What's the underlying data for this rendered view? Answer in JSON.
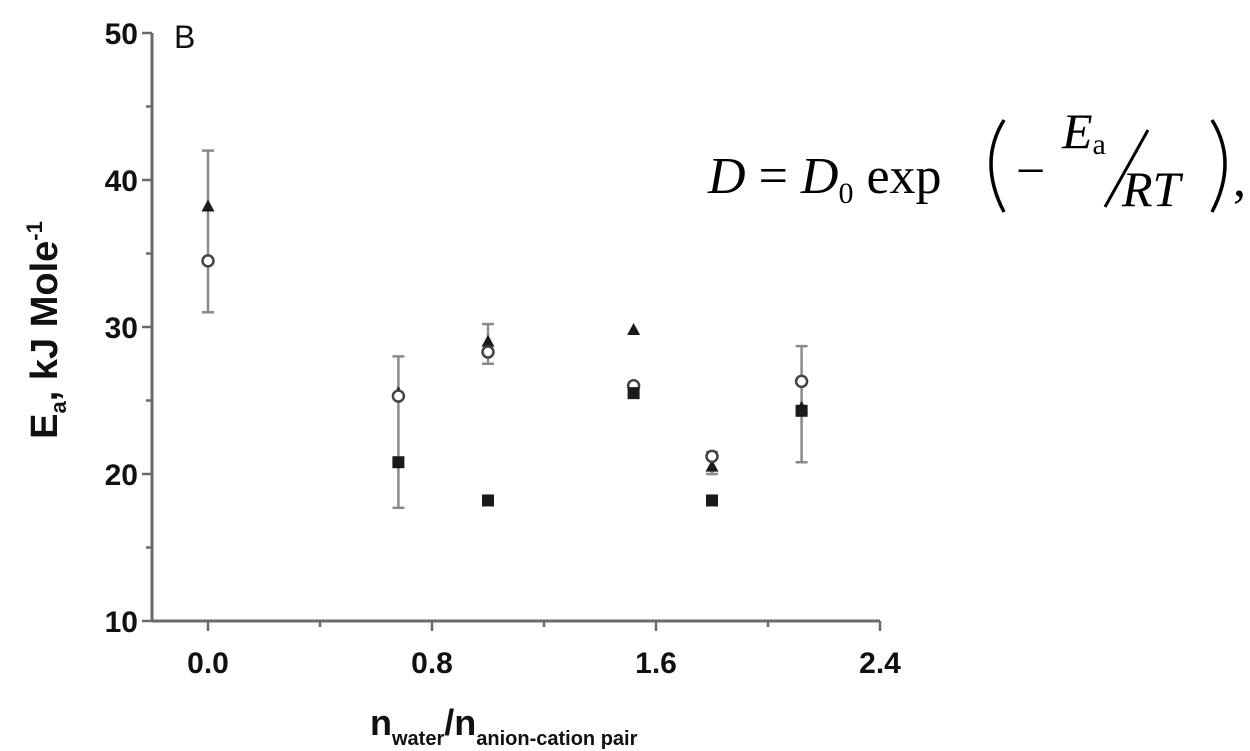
{
  "chart_data": {
    "type": "scatter",
    "panel_label": "B",
    "xlabel": {
      "main_1": "n",
      "sub_1": "water",
      "sep": "/n",
      "sub_2": "anion-cation pair"
    },
    "ylabel": {
      "main_1": "E",
      "sub": "a",
      "main_2": ", kJ Mole",
      "sup": "-1"
    },
    "xlim": [
      -0.2,
      2.4
    ],
    "ylim": [
      10,
      50
    ],
    "x_ticks": [
      0.0,
      0.8,
      1.6,
      2.4
    ],
    "x_tick_labels": [
      "0.0",
      "0.8",
      "1.6",
      "2.4"
    ],
    "y_ticks": [
      10,
      20,
      30,
      40,
      50
    ],
    "y_tick_labels": [
      "10",
      "20",
      "30",
      "40",
      "50"
    ],
    "series": [
      {
        "marker": "triangle",
        "points": [
          {
            "x": 0.0,
            "y": 38.2
          },
          {
            "x": 0.68,
            "y": 25.5
          },
          {
            "x": 1.0,
            "y": 29.0
          },
          {
            "x": 1.52,
            "y": 29.8
          },
          {
            "x": 1.8,
            "y": 20.5
          },
          {
            "x": 2.12,
            "y": 24.5
          }
        ]
      },
      {
        "marker": "open-circle",
        "points": [
          {
            "x": 0.0,
            "y": 34.5
          },
          {
            "x": 0.68,
            "y": 25.3
          },
          {
            "x": 1.0,
            "y": 28.3
          },
          {
            "x": 1.52,
            "y": 26.0
          },
          {
            "x": 1.8,
            "y": 21.2
          },
          {
            "x": 2.12,
            "y": 26.3
          }
        ]
      },
      {
        "marker": "square",
        "points": [
          {
            "x": 0.68,
            "y": 20.8
          },
          {
            "x": 1.0,
            "y": 18.2
          },
          {
            "x": 1.52,
            "y": 25.5
          },
          {
            "x": 1.8,
            "y": 18.2
          },
          {
            "x": 2.12,
            "y": 24.3
          }
        ]
      }
    ],
    "error_bars": [
      {
        "x": 0.0,
        "low": 31.0,
        "high": 42.0
      },
      {
        "x": 0.68,
        "low": 17.7,
        "high": 28.0
      },
      {
        "x": 1.0,
        "low": 27.5,
        "high": 30.2
      },
      {
        "x": 1.8,
        "low": 20.0,
        "high": 21.5
      },
      {
        "x": 2.12,
        "low": 20.8,
        "high": 28.7
      }
    ],
    "grid": false,
    "legend": "none"
  },
  "equation": {
    "lhs": "D",
    "eq": " = ",
    "d": "D",
    "d_sub": "0",
    "func": " exp",
    "minus": "−",
    "e": "E",
    "e_sub": "a",
    "rt": "RT",
    "comma": ","
  }
}
